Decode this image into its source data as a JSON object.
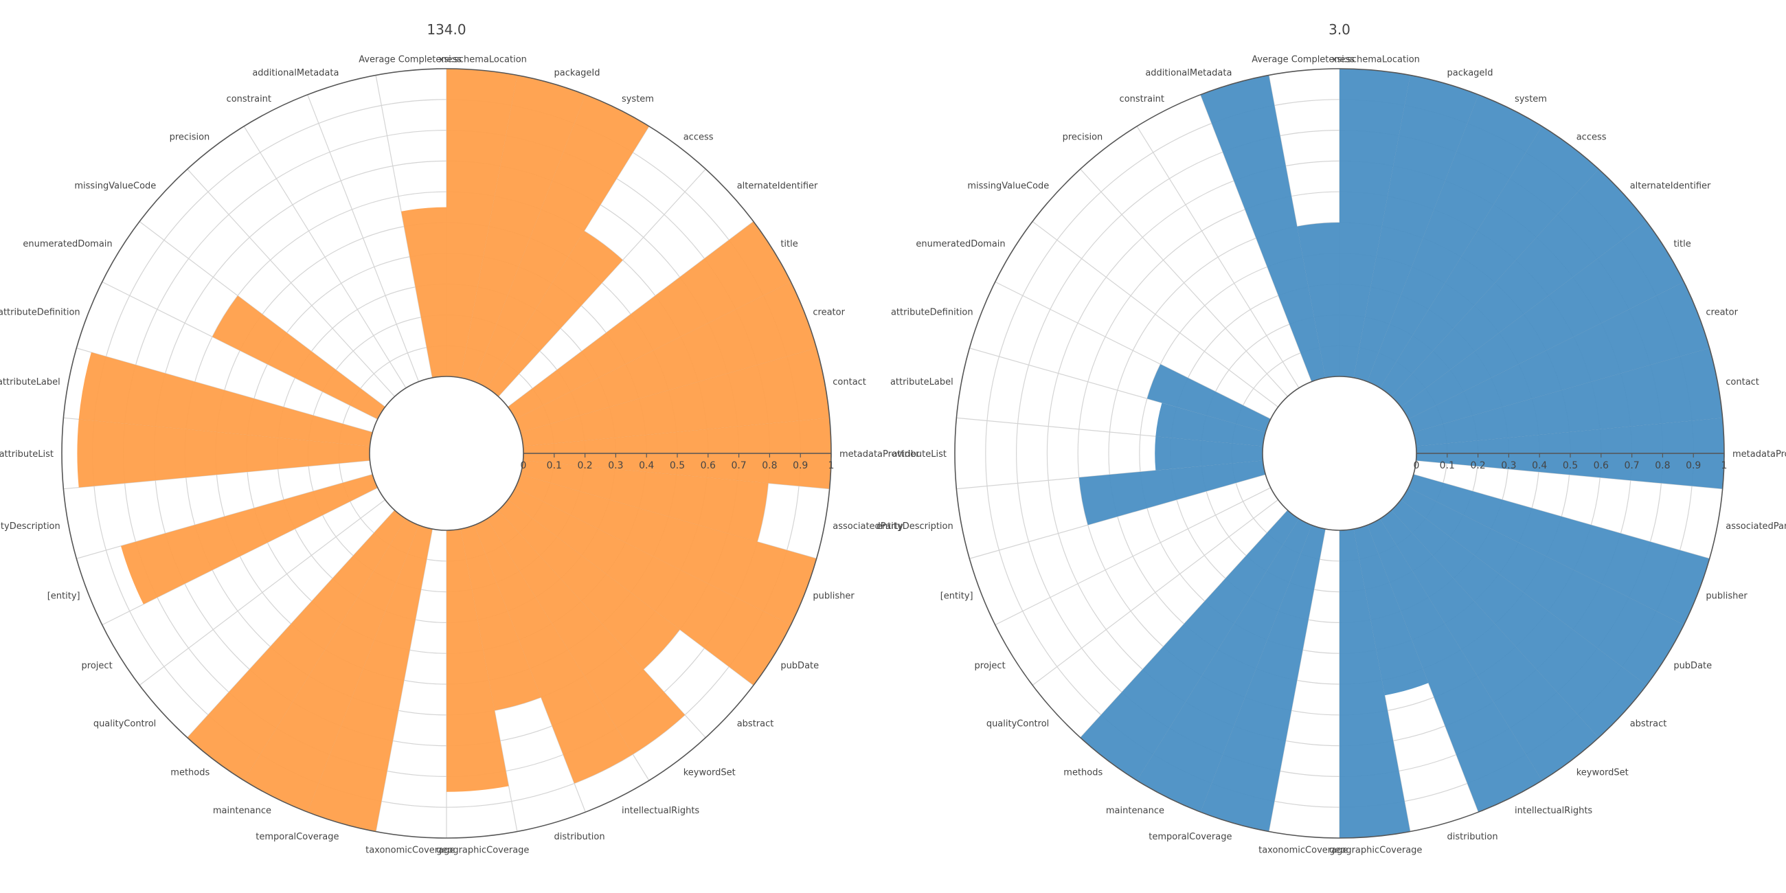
{
  "chart_data": [
    {
      "type": "barpolar",
      "title": "134.0",
      "color": "#ff9f4a",
      "categories": [
        "metadataProvider",
        "contact",
        "creator",
        "title",
        "alternateIdentifier",
        "access",
        "system",
        "packageId",
        "xsi:schemaLocation",
        "Average Completeness",
        "additionalMetadata",
        "constraint",
        "precision",
        "missingValueCode",
        "enumeratedDomain",
        "attributeDefinition",
        "attributeLabel",
        "attributeList",
        "entityDescription",
        "[entity]",
        "project",
        "qualityControl",
        "methods",
        "maintenance",
        "temporalCoverage",
        "taxonomicCoverage",
        "geographicCoverage",
        "distribution",
        "intellectualRights",
        "keywordSet",
        "abstract",
        "pubDate",
        "publisher",
        "associatedParty"
      ],
      "values": [
        1.0,
        1.0,
        1.0,
        1.0,
        0.0,
        0.6,
        1.0,
        1.0,
        1.0,
        0.55,
        0.0,
        0.0,
        0.0,
        0.0,
        0.6,
        0.0,
        0.95,
        0.95,
        0.0,
        0.85,
        0.0,
        0.0,
        1.0,
        1.0,
        1.0,
        0.0,
        0.85,
        0.6,
        0.9,
        0.9,
        0.7,
        1.0,
        1.0,
        0.8
      ],
      "radial_range": [
        0,
        1
      ],
      "radial_ticks": [
        "0",
        "0.1",
        "0.2",
        "0.3",
        "0.4",
        "0.5",
        "0.6",
        "0.7",
        "0.8",
        "0.9",
        "1"
      ],
      "grid": true
    },
    {
      "type": "barpolar",
      "title": "3.0",
      "color": "#4a8fc4",
      "categories": [
        "metadataProvider",
        "contact",
        "creator",
        "title",
        "alternateIdentifier",
        "access",
        "system",
        "packageId",
        "xsi:schemaLocation",
        "Average Completeness",
        "additionalMetadata",
        "constraint",
        "precision",
        "missingValueCode",
        "enumeratedDomain",
        "attributeDefinition",
        "attributeLabel",
        "attributeList",
        "entityDescription",
        "[entity]",
        "project",
        "qualityControl",
        "methods",
        "maintenance",
        "temporalCoverage",
        "taxonomicCoverage",
        "geographicCoverage",
        "distribution",
        "intellectualRights",
        "keywordSet",
        "abstract",
        "pubDate",
        "publisher",
        "associatedParty"
      ],
      "values": [
        1.0,
        1.0,
        1.0,
        1.0,
        1.0,
        1.0,
        1.0,
        1.0,
        1.0,
        0.5,
        1.0,
        0.0,
        0.0,
        0.0,
        0.0,
        0.4,
        0.35,
        0.35,
        0.6,
        0.0,
        0.0,
        0.0,
        1.0,
        1.0,
        1.0,
        0.0,
        1.0,
        0.55,
        1.0,
        1.0,
        1.0,
        1.0,
        1.0,
        0.0
      ],
      "radial_range": [
        0,
        1
      ],
      "radial_ticks": [
        "0",
        "0.1",
        "0.2",
        "0.3",
        "0.4",
        "0.5",
        "0.6",
        "0.7",
        "0.8",
        "0.9",
        "1"
      ],
      "grid": true
    }
  ]
}
